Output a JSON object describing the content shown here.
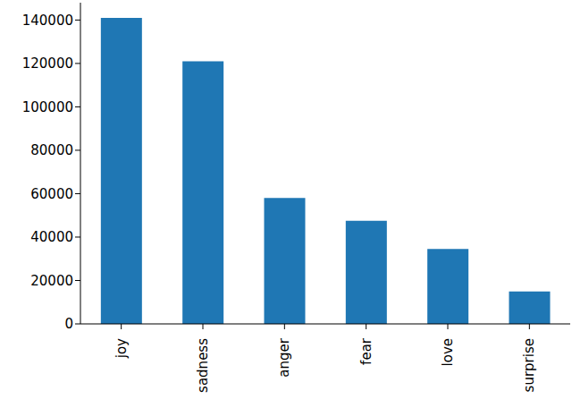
{
  "chart_data": {
    "type": "bar",
    "categories": [
      "joy",
      "sadness",
      "anger",
      "fear",
      "love",
      "surprise"
    ],
    "values": [
      141000,
      121000,
      58000,
      47500,
      34500,
      14900
    ],
    "color": "#1f77b4",
    "ylim": [
      0,
      148000
    ],
    "yticks": [
      0,
      20000,
      40000,
      60000,
      80000,
      100000,
      120000,
      140000
    ],
    "grid": false
  }
}
